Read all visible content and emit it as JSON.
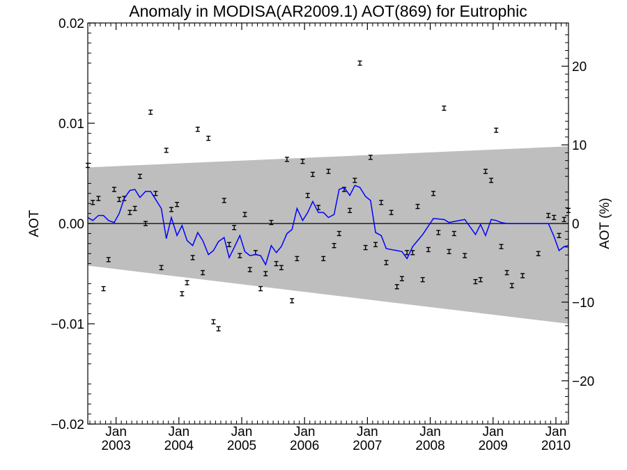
{
  "chart_data": {
    "type": "scatter",
    "title": "Anomaly in MODISA(AR2009.1) AOT(869) for Eutrophic",
    "ylabel": "AOT",
    "y2label": "AOT (%)",
    "ylim": [
      -0.02,
      0.02
    ],
    "y2lim": [
      -25.5,
      25.5
    ],
    "xlim": [
      2002.55,
      2010.2
    ],
    "y_ticks": [
      {
        "v": 0.02,
        "label": "0.02"
      },
      {
        "v": 0.01,
        "label": "0.01"
      },
      {
        "v": 0.0,
        "label": "0.00"
      },
      {
        "v": -0.01,
        "label": "−0.01"
      },
      {
        "v": -0.02,
        "label": "−0.02"
      }
    ],
    "y2_ticks": [
      {
        "v": 20,
        "label": "20"
      },
      {
        "v": 10,
        "label": "10"
      },
      {
        "v": 0,
        "label": "0"
      },
      {
        "v": -10,
        "label": "−10"
      },
      {
        "v": -20,
        "label": "−20"
      }
    ],
    "x_ticks": [
      {
        "v": 2003.0,
        "month": "Jan",
        "year": "2003"
      },
      {
        "v": 2004.0,
        "month": "Jan",
        "year": "2004"
      },
      {
        "v": 2005.0,
        "month": "Jan",
        "year": "2005"
      },
      {
        "v": 2006.0,
        "month": "Jan",
        "year": "2006"
      },
      {
        "v": 2007.0,
        "month": "Jan",
        "year": "2007"
      },
      {
        "v": 2008.0,
        "month": "Jan",
        "year": "2008"
      },
      {
        "v": 2009.0,
        "month": "Jan",
        "year": "2009"
      },
      {
        "v": 2010.0,
        "month": "Jan",
        "year": "2010"
      }
    ],
    "uncertainty_band": {
      "x": [
        2002.55,
        2010.2
      ],
      "upper": [
        0.0056,
        0.0077
      ],
      "lower": [
        -0.0042,
        -0.01
      ],
      "color": "#bebebe"
    },
    "zero_line": 0.0,
    "smoothed_series": {
      "color": "#0000ff",
      "x": [
        2002.55,
        2002.63,
        2002.72,
        2002.8,
        2002.88,
        2002.97,
        2003.05,
        2003.13,
        2003.22,
        2003.3,
        2003.38,
        2003.47,
        2003.55,
        2003.63,
        2003.72,
        2003.8,
        2003.88,
        2003.97,
        2004.05,
        2004.13,
        2004.22,
        2004.3,
        2004.38,
        2004.47,
        2004.55,
        2004.63,
        2004.72,
        2004.8,
        2004.88,
        2004.97,
        2005.05,
        2005.13,
        2005.22,
        2005.3,
        2005.38,
        2005.47,
        2005.55,
        2005.63,
        2005.72,
        2005.8,
        2005.88,
        2005.97,
        2006.05,
        2006.13,
        2006.22,
        2006.3,
        2006.38,
        2006.47,
        2006.55,
        2006.63,
        2006.72,
        2006.8,
        2006.88,
        2006.97,
        2007.05,
        2007.13,
        2007.22,
        2007.3,
        2007.38,
        2007.47,
        2007.55,
        2007.63,
        2007.72,
        2007.8,
        2007.88,
        2008.05,
        2008.22,
        2008.3,
        2008.38,
        2008.55,
        2008.72,
        2008.8,
        2008.88,
        2008.97,
        2009.05,
        2009.13,
        2009.22,
        2009.3,
        2009.47,
        2009.72,
        2009.88,
        2009.97,
        2010.05,
        2010.13,
        2010.2
      ],
      "y": [
        0.0006,
        0.0003,
        0.0008,
        0.0008,
        0.0003,
        0.0001,
        0.001,
        0.0025,
        0.0033,
        0.0034,
        0.0026,
        0.0032,
        0.0032,
        0.0024,
        0.0015,
        -0.0015,
        0.0006,
        -0.0012,
        -0.0002,
        -0.0017,
        -0.0022,
        -0.0009,
        -0.0017,
        -0.0031,
        -0.0027,
        -0.0018,
        -0.0014,
        -0.0034,
        -0.0024,
        -0.0012,
        -0.0028,
        -0.0032,
        -0.0031,
        -0.0032,
        -0.0041,
        -0.0022,
        -0.0029,
        -0.0023,
        -0.001,
        -0.0006,
        0.0015,
        0.0003,
        0.0011,
        0.0022,
        0.0011,
        0.0011,
        0.0006,
        0.0009,
        0.0034,
        0.0036,
        0.0028,
        0.0038,
        0.0036,
        0.0027,
        0.0023,
        -0.0009,
        -0.0012,
        -0.0025,
        -0.0026,
        -0.0027,
        -0.0028,
        -0.0035,
        -0.0023,
        -0.0017,
        -0.0011,
        0.0005,
        0.0004,
        0.0001,
        0.0002,
        0.0004,
        -0.0011,
        -0.0001,
        -0.0012,
        0.0004,
        0.0003,
        0.0001,
        0.0,
        0.0,
        0.0,
        0.0,
        0.0,
        -0.0013,
        -0.0027,
        -0.0023,
        -0.0022
      ]
    },
    "points": {
      "x": [
        2002.55,
        2002.63,
        2002.72,
        2002.8,
        2002.88,
        2002.97,
        2003.05,
        2003.13,
        2003.22,
        2003.3,
        2003.38,
        2003.47,
        2003.55,
        2003.63,
        2003.72,
        2003.8,
        2003.88,
        2003.97,
        2004.05,
        2004.13,
        2004.22,
        2004.3,
        2004.38,
        2004.47,
        2004.55,
        2004.63,
        2004.72,
        2004.8,
        2004.88,
        2004.97,
        2005.05,
        2005.13,
        2005.22,
        2005.3,
        2005.38,
        2005.47,
        2005.55,
        2005.63,
        2005.72,
        2005.8,
        2005.88,
        2005.97,
        2006.05,
        2006.13,
        2006.22,
        2006.3,
        2006.38,
        2006.47,
        2006.55,
        2006.63,
        2006.72,
        2006.8,
        2006.88,
        2006.97,
        2007.05,
        2007.13,
        2007.22,
        2007.3,
        2007.38,
        2007.47,
        2007.55,
        2007.63,
        2007.72,
        2007.8,
        2007.88,
        2007.97,
        2008.05,
        2008.13,
        2008.22,
        2008.3,
        2008.38,
        2008.55,
        2008.72,
        2008.8,
        2008.88,
        2008.97,
        2009.05,
        2009.13,
        2009.22,
        2009.3,
        2009.47,
        2009.72,
        2009.88,
        2009.97,
        2010.05,
        2010.13,
        2010.2
      ],
      "y": [
        0.0058,
        0.0021,
        0.0025,
        -0.0065,
        -0.0036,
        0.0034,
        0.0024,
        0.0025,
        0.0011,
        0.0015,
        0.0047,
        0.0,
        0.0111,
        0.003,
        -0.0044,
        0.0073,
        0.0014,
        0.0019,
        -0.007,
        -0.0059,
        -0.0034,
        0.0094,
        -0.0049,
        0.0085,
        -0.0098,
        -0.0105,
        0.0023,
        -0.0021,
        -0.0004,
        -0.0032,
        0.0009,
        -0.0046,
        -0.0029,
        -0.0065,
        -0.005,
        0.0001,
        -0.004,
        -0.0044,
        0.0064,
        -0.0077,
        -0.0035,
        0.0062,
        0.0028,
        0.0049,
        0.0016,
        -0.0035,
        0.0052,
        -0.0022,
        -0.001,
        0.0034,
        0.0013,
        0.0043,
        0.016,
        -0.0024,
        0.0066,
        -0.0021,
        0.0021,
        -0.0039,
        0.0011,
        -0.0063,
        -0.0055,
        -0.0029,
        -0.0029,
        0.0017,
        -0.0056,
        -0.0026,
        0.003,
        -0.0009,
        0.0115,
        -0.0028,
        -0.001,
        -0.0032,
        -0.0058,
        -0.0056,
        0.0052,
        0.0043,
        0.0093,
        -0.0023,
        -0.0049,
        -0.0062,
        -0.0052,
        -0.003,
        0.0008,
        0.0006,
        -0.0012,
        0.0004,
        0.0013
      ]
    }
  }
}
